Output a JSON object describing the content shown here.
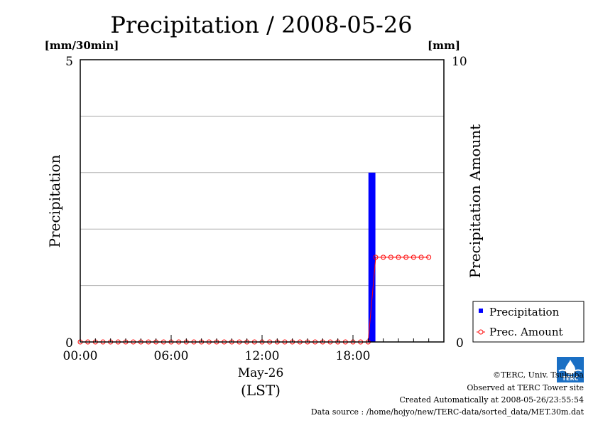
{
  "chart_data": {
    "type": "bar",
    "title": "Precipitation / 2008-05-26",
    "left_unit": "[mm/30min]",
    "right_unit": "[mm]",
    "left_ylabel": "Precipitation",
    "right_ylabel": "Precipitation Amount",
    "left_ylim": [
      0,
      5
    ],
    "right_ylim": [
      0,
      10
    ],
    "left_tick_labels": [
      "0",
      "5"
    ],
    "right_tick_labels": [
      "0",
      "10"
    ],
    "x_tick_labels": [
      "00:00",
      "06:00",
      "12:00",
      "18:00"
    ],
    "x_tick_hours": [
      0,
      6,
      12,
      18
    ],
    "x_range_hours": [
      0,
      24
    ],
    "date_label": "May-26",
    "time_zone_label": "(LST)",
    "grid": "horizontal",
    "series": [
      {
        "name": "Precipitation",
        "kind": "bar",
        "axis": "left",
        "color": "#0000ff",
        "x_hours": [
          19.0
        ],
        "values": [
          3.0
        ]
      },
      {
        "name": "Prec. Amount",
        "kind": "line",
        "axis": "right",
        "color": "#ff0000",
        "marker": "open-circle",
        "x_hours": [
          0.0,
          0.5,
          1.0,
          1.5,
          2.0,
          2.5,
          3.0,
          3.5,
          4.0,
          4.5,
          5.0,
          5.5,
          6.0,
          6.5,
          7.0,
          7.5,
          8.0,
          8.5,
          9.0,
          9.5,
          10.0,
          10.5,
          11.0,
          11.5,
          12.0,
          12.5,
          13.0,
          13.5,
          14.0,
          14.5,
          15.0,
          15.5,
          16.0,
          16.5,
          17.0,
          17.5,
          18.0,
          18.5,
          19.0,
          19.5,
          20.0,
          20.5,
          21.0,
          21.5,
          22.0,
          22.5,
          23.0
        ],
        "values": [
          0,
          0,
          0,
          0,
          0,
          0,
          0,
          0,
          0,
          0,
          0,
          0,
          0,
          0,
          0,
          0,
          0,
          0,
          0,
          0,
          0,
          0,
          0,
          0,
          0,
          0,
          0,
          0,
          0,
          0,
          0,
          0,
          0,
          0,
          0,
          0,
          0,
          0,
          0,
          3.0,
          3.0,
          3.0,
          3.0,
          3.0,
          3.0,
          3.0,
          3.0
        ]
      }
    ],
    "legend_position": "bottom-right"
  },
  "credits": {
    "copyright": "©TERC, Univ. Tsukuba",
    "observed": "Observed at TERC Tower site",
    "created": "Created Automatically at 2008-05-26/23:55:54",
    "source": "Data source : /home/hojyo/new/TERC-data/sorted_data/MET.30m.dat",
    "logo_text": "TERC"
  }
}
